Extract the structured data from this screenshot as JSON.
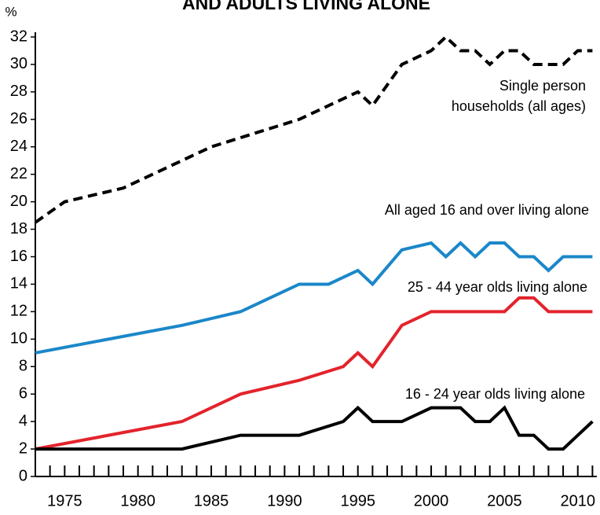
{
  "chart_data": {
    "type": "line",
    "title": "AND ADULTS LIVING ALONE",
    "y_unit": "%",
    "xlim": [
      1973,
      2011.3
    ],
    "ylim": [
      0,
      32
    ],
    "xticks": [
      1975,
      1980,
      1985,
      1990,
      1995,
      2000,
      2005,
      2010
    ],
    "xminor_ticks": [
      1974,
      1975,
      1976,
      1977,
      1978,
      1979,
      1980,
      1981,
      1982,
      1983,
      1984,
      1985,
      1986,
      1987,
      1988,
      1989,
      1990,
      1991,
      1992,
      1993,
      1994,
      1995,
      1996,
      1997,
      1998,
      1999,
      2000,
      2001,
      2002,
      2003,
      2004,
      2005,
      2006,
      2007,
      2008,
      2009,
      2010,
      2011
    ],
    "yticks": [
      0,
      2,
      4,
      6,
      8,
      10,
      12,
      14,
      16,
      18,
      20,
      22,
      24,
      26,
      28,
      30,
      32
    ],
    "grid": false,
    "series": [
      {
        "name": [
          "Single person",
          "households (all ages)"
        ],
        "color": "#000000",
        "dashed": true,
        "x": [
          1973,
          1975,
          1979,
          1981,
          1985,
          1991,
          1995,
          1996,
          1998,
          2000,
          2001,
          2002,
          2003,
          2004,
          2005,
          2006,
          2007,
          2008,
          2009,
          2010,
          2011
        ],
        "values": [
          18.5,
          20,
          21,
          22,
          24,
          26,
          28,
          27,
          30,
          31,
          32,
          31,
          31,
          30,
          31,
          31,
          30,
          30,
          30,
          31,
          31
        ]
      },
      {
        "name": [
          "All aged 16 and over living alone"
        ],
        "color": "#1b87c9",
        "dashed": false,
        "x": [
          1973,
          1983,
          1987,
          1991,
          1993,
          1995,
          1996,
          1998,
          2000,
          2001,
          2002,
          2003,
          2004,
          2005,
          2006,
          2007,
          2008,
          2009,
          2010,
          2011
        ],
        "values": [
          9,
          11,
          12,
          14,
          14,
          15,
          14,
          16.5,
          17,
          16,
          17,
          16,
          17,
          17,
          16,
          16,
          15,
          16,
          16,
          16
        ]
      },
      {
        "name": [
          "25 - 44 year olds living alone"
        ],
        "color": "#e3232c",
        "dashed": false,
        "x": [
          1973,
          1983,
          1987,
          1991,
          1994,
          1995,
          1996,
          1998,
          2000,
          2005,
          2006,
          2007,
          2008,
          2011
        ],
        "values": [
          2,
          4,
          6,
          7,
          8,
          9,
          8,
          11,
          12,
          12,
          13,
          13,
          12,
          12
        ]
      },
      {
        "name": [
          "16 - 24 year olds living alone"
        ],
        "color": "#000000",
        "dashed": false,
        "x": [
          1973,
          1983,
          1987,
          1991,
          1994,
          1995,
          1996,
          1998,
          2000,
          2002,
          2003,
          2004,
          2005,
          2006,
          2007,
          2008,
          2009,
          2010,
          2011
        ],
        "values": [
          2,
          2,
          3,
          3,
          4,
          5,
          4,
          4,
          5,
          5,
          4,
          4,
          5,
          3,
          3,
          2,
          2,
          3,
          4
        ]
      }
    ]
  }
}
